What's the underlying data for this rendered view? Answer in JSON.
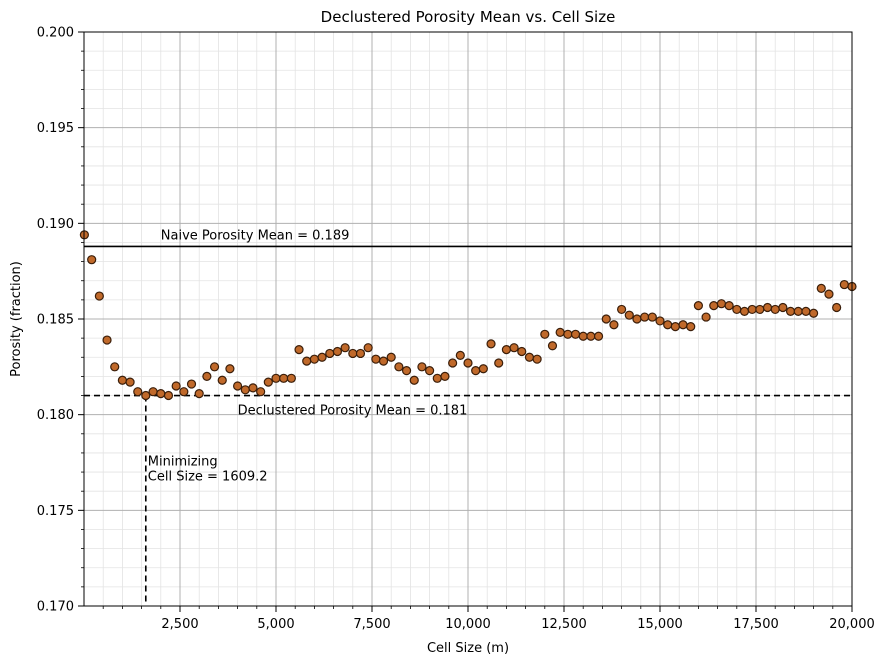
{
  "chart_data": {
    "type": "scatter",
    "title": "Declustered Porosity Mean vs. Cell Size",
    "xlabel": "Cell Size (m)",
    "ylabel": "Porosity (fraction)",
    "xlim": [
      0,
      20000
    ],
    "ylim": [
      0.17,
      0.2
    ],
    "x_ticks": [
      2500,
      5000,
      7500,
      10000,
      12500,
      15000,
      17500,
      20000
    ],
    "x_tick_labels": [
      "2,500",
      "5,000",
      "7,500",
      "10,000",
      "12,500",
      "15,000",
      "17,500",
      "20,000"
    ],
    "y_ticks": [
      0.17,
      0.175,
      0.18,
      0.185,
      0.19,
      0.195,
      0.2
    ],
    "y_tick_labels": [
      "0.170",
      "0.175",
      "0.180",
      "0.185",
      "0.190",
      "0.195",
      "0.200"
    ],
    "grid": true,
    "marker_color": "#c0692a",
    "marker_edge_color": "#3a1e0a",
    "x": [
      10,
      200,
      400,
      600,
      800,
      1000,
      1200,
      1400,
      1609,
      1800,
      2000,
      2200,
      2400,
      2600,
      2800,
      3000,
      3200,
      3400,
      3600,
      3800,
      4000,
      4200,
      4400,
      4600,
      4800,
      5000,
      5200,
      5400,
      5600,
      5800,
      6000,
      6200,
      6400,
      6600,
      6800,
      7000,
      7200,
      7400,
      7600,
      7800,
      8000,
      8200,
      8400,
      8600,
      8800,
      9000,
      9200,
      9400,
      9600,
      9800,
      10000,
      10200,
      10400,
      10600,
      10800,
      11000,
      11200,
      11400,
      11600,
      11800,
      12000,
      12200,
      12400,
      12600,
      12800,
      13000,
      13200,
      13400,
      13600,
      13800,
      14000,
      14200,
      14400,
      14600,
      14800,
      15000,
      15200,
      15400,
      15600,
      15800,
      16000,
      16200,
      16400,
      16600,
      16800,
      17000,
      17200,
      17400,
      17600,
      17800,
      18000,
      18200,
      18400,
      18600,
      18800,
      19000,
      19200,
      19400,
      19600,
      19800,
      20000
    ],
    "y": [
      0.1894,
      0.1881,
      0.1862,
      0.1839,
      0.1825,
      0.1818,
      0.1817,
      0.1812,
      0.181,
      0.1812,
      0.1811,
      0.181,
      0.1815,
      0.1812,
      0.1816,
      0.1811,
      0.182,
      0.1825,
      0.1818,
      0.1824,
      0.1815,
      0.1813,
      0.1814,
      0.1812,
      0.1817,
      0.1819,
      0.1819,
      0.1819,
      0.1834,
      0.1828,
      0.1829,
      0.183,
      0.1832,
      0.1833,
      0.1835,
      0.1832,
      0.1832,
      0.1835,
      0.1829,
      0.1828,
      0.183,
      0.1825,
      0.1823,
      0.1818,
      0.1825,
      0.1823,
      0.1819,
      0.182,
      0.1827,
      0.1831,
      0.1827,
      0.1823,
      0.1824,
      0.1837,
      0.1827,
      0.1834,
      0.1835,
      0.1833,
      0.183,
      0.1829,
      0.1842,
      0.1836,
      0.1843,
      0.1842,
      0.1842,
      0.1841,
      0.1841,
      0.1841,
      0.185,
      0.1847,
      0.1855,
      0.1852,
      0.185,
      0.1851,
      0.1851,
      0.1849,
      0.1847,
      0.1846,
      0.1847,
      0.1846,
      0.1857,
      0.1851,
      0.1857,
      0.1858,
      0.1857,
      0.1855,
      0.1854,
      0.1855,
      0.1855,
      0.1856,
      0.1855,
      0.1856,
      0.1854,
      0.1854,
      0.1854,
      0.1853,
      0.1866,
      0.1863,
      0.1856,
      0.1868,
      0.1867
    ],
    "naive_mean": 0.189,
    "declustered_mean": 0.181,
    "minimizing_cell_size": 1609.2,
    "annotations": {
      "naive": "Naive Porosity Mean = 0.189",
      "declustered": "Declustered Porosity Mean = 0.181",
      "minimizing_line1": "Minimizing",
      "minimizing_line2": "Cell Size = 1609.2"
    }
  }
}
